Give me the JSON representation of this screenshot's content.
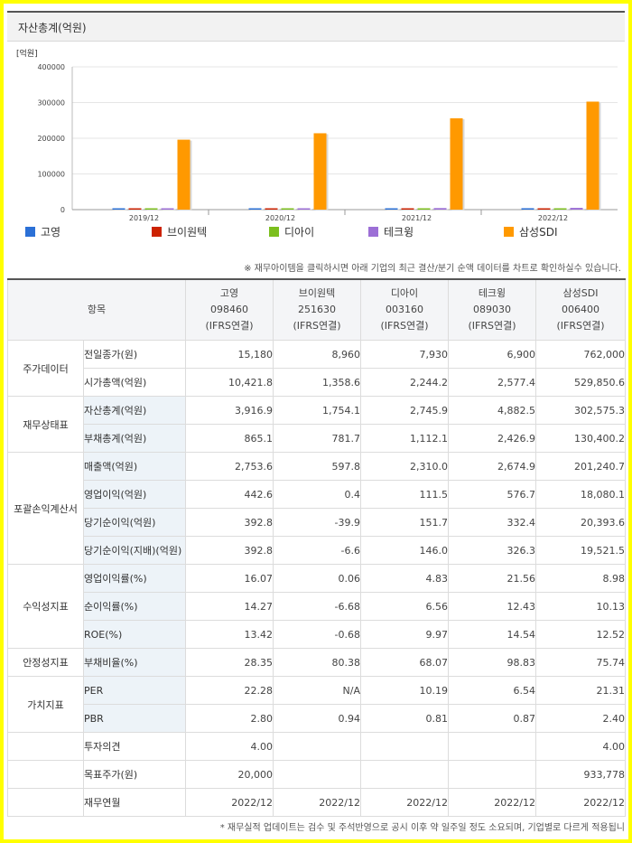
{
  "chart_title": "자산총계(억원)",
  "chart_data": {
    "type": "bar",
    "title": "자산총계(억원)",
    "ylabel": "[억원]",
    "ylim": [
      0,
      400000
    ],
    "yticks": [
      "400000",
      "300000",
      "200000",
      "100000",
      "0"
    ],
    "categories": [
      "2019/12",
      "2020/12",
      "2021/12",
      "2022/12"
    ],
    "series": [
      {
        "name": "고영",
        "color": "#2b70d6",
        "values": [
          2500,
          2900,
          3400,
          3916.9
        ]
      },
      {
        "name": "브이원텍",
        "color": "#cc2200",
        "values": [
          900,
          1100,
          1500,
          1754.1
        ]
      },
      {
        "name": "디아이",
        "color": "#7cbf1e",
        "values": [
          2200,
          2300,
          2600,
          2745.9
        ]
      },
      {
        "name": "테크윙",
        "color": "#9c6fd6",
        "values": [
          3200,
          3600,
          4300,
          4882.5
        ]
      },
      {
        "name": "삼성SDI",
        "color": "#ff9900",
        "values": [
          196000,
          214000,
          256000,
          302575.3
        ]
      }
    ],
    "legend_position": "bottom"
  },
  "note_top": "※ 재무아이템을 클릭하시면 아래 기업의 최근 결산/분기 순액 데이터를 차트로 확인하실수 있습니다.",
  "table": {
    "header_item": "항목",
    "companies": [
      {
        "name": "고영",
        "code": "098460",
        "basis": "(IFRS연결)"
      },
      {
        "name": "브이원텍",
        "code": "251630",
        "basis": "(IFRS연결)"
      },
      {
        "name": "디아이",
        "code": "003160",
        "basis": "(IFRS연결)"
      },
      {
        "name": "테크윙",
        "code": "089030",
        "basis": "(IFRS연결)"
      },
      {
        "name": "삼성SDI",
        "code": "006400",
        "basis": "(IFRS연결)"
      }
    ],
    "groups": [
      {
        "category": "주가데이터",
        "rows": [
          {
            "item": "전일종가(원)",
            "values": [
              "15,180",
              "8,960",
              "7,930",
              "6,900",
              "762,000"
            ],
            "hl": false
          },
          {
            "item": "시가총액(억원)",
            "values": [
              "10,421.8",
              "1,358.6",
              "2,244.2",
              "2,577.4",
              "529,850.6"
            ],
            "hl": false
          }
        ]
      },
      {
        "category": "재무상태표",
        "rows": [
          {
            "item": "자산총계(억원)",
            "values": [
              "3,916.9",
              "1,754.1",
              "2,745.9",
              "4,882.5",
              "302,575.3"
            ],
            "hl": true
          },
          {
            "item": "부채총계(억원)",
            "values": [
              "865.1",
              "781.7",
              "1,112.1",
              "2,426.9",
              "130,400.2"
            ],
            "hl": true
          }
        ]
      },
      {
        "category": "포괄손익계산서",
        "rows": [
          {
            "item": "매출액(억원)",
            "values": [
              "2,753.6",
              "597.8",
              "2,310.0",
              "2,674.9",
              "201,240.7"
            ],
            "hl": true
          },
          {
            "item": "영업이익(억원)",
            "values": [
              "442.6",
              "0.4",
              "111.5",
              "576.7",
              "18,080.1"
            ],
            "hl": true
          },
          {
            "item": "당기순이익(억원)",
            "values": [
              "392.8",
              "-39.9",
              "151.7",
              "332.4",
              "20,393.6"
            ],
            "hl": true
          },
          {
            "item": "당기순이익(지배)(억원)",
            "values": [
              "392.8",
              "-6.6",
              "146.0",
              "326.3",
              "19,521.5"
            ],
            "hl": true
          }
        ]
      },
      {
        "category": "수익성지표",
        "rows": [
          {
            "item": "영업이익률(%)",
            "values": [
              "16.07",
              "0.06",
              "4.83",
              "21.56",
              "8.98"
            ],
            "hl": true
          },
          {
            "item": "순이익률(%)",
            "values": [
              "14.27",
              "-6.68",
              "6.56",
              "12.43",
              "10.13"
            ],
            "hl": true
          },
          {
            "item": "ROE(%)",
            "values": [
              "13.42",
              "-0.68",
              "9.97",
              "14.54",
              "12.52"
            ],
            "hl": true
          }
        ]
      },
      {
        "category": "안정성지표",
        "rows": [
          {
            "item": "부채비율(%)",
            "values": [
              "28.35",
              "80.38",
              "68.07",
              "98.83",
              "75.74"
            ],
            "hl": true
          }
        ]
      },
      {
        "category": "가치지표",
        "rows": [
          {
            "item": "PER",
            "values": [
              "22.28",
              "N/A",
              "10.19",
              "6.54",
              "21.31"
            ],
            "hl": true
          },
          {
            "item": "PBR",
            "values": [
              "2.80",
              "0.94",
              "0.81",
              "0.87",
              "2.40"
            ],
            "hl": true
          }
        ]
      }
    ],
    "extra_rows": [
      {
        "item": "투자의견",
        "values": [
          "4.00",
          "",
          "",
          "",
          "4.00"
        ]
      },
      {
        "item": "목표주가(원)",
        "values": [
          "20,000",
          "",
          "",
          "",
          "933,778"
        ]
      },
      {
        "item": "재무연월",
        "values": [
          "2022/12",
          "2022/12",
          "2022/12",
          "2022/12",
          "2022/12"
        ]
      }
    ]
  },
  "note_bottom": "* 재무실적 업데이트는 검수 및 주석반영으로 공시 이후 약 일주일 정도 소요되며, 기업별로 다르게 적용됩니"
}
